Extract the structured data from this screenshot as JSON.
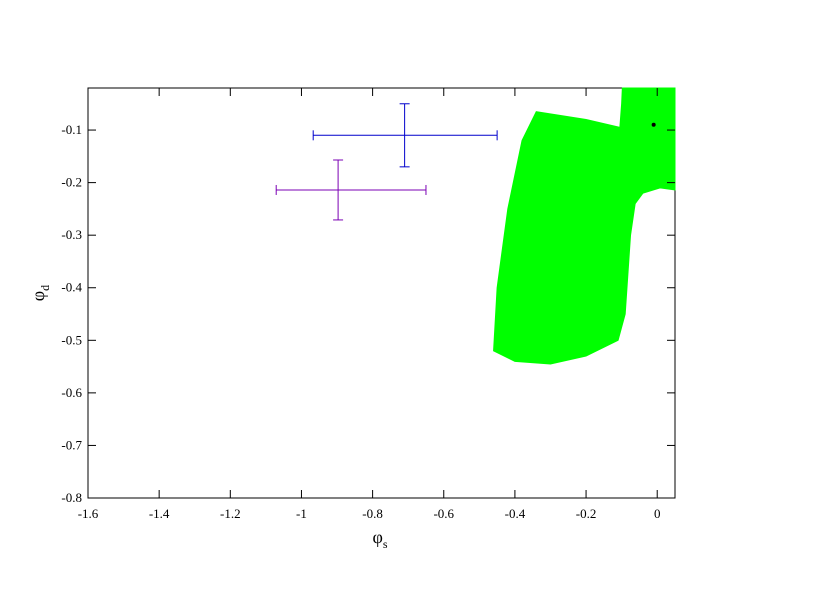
{
  "chart_data": {
    "type": "scatter",
    "xlabel": {
      "text": "φ",
      "sub": "s"
    },
    "ylabel": {
      "text": "φ",
      "sub": "d"
    },
    "xlim": [
      -1.6,
      0.05
    ],
    "ylim": [
      -0.8,
      -0.02
    ],
    "xticks": [
      -1.6,
      -1.4,
      -1.2,
      -1,
      -0.8,
      -0.6,
      -0.4,
      -0.2,
      0
    ],
    "yticks": [
      -0.8,
      -0.7,
      -0.6,
      -0.5,
      -0.4,
      -0.3,
      -0.2,
      -0.1
    ],
    "region": {
      "color": "#00ff00",
      "x": [
        -0.098,
        0.05,
        0.05,
        0.008,
        -0.04,
        -0.062,
        -0.075,
        -0.09,
        -0.11,
        -0.2,
        -0.3,
        -0.4,
        -0.46,
        -0.45,
        -0.42,
        -0.38,
        -0.34,
        -0.2,
        -0.105,
        -0.1
      ],
      "y": [
        -0.02,
        -0.02,
        -0.214,
        -0.21,
        -0.22,
        -0.24,
        -0.3,
        -0.45,
        -0.5,
        -0.53,
        -0.545,
        -0.54,
        -0.52,
        -0.4,
        -0.25,
        -0.12,
        -0.065,
        -0.08,
        -0.095,
        -0.05
      ]
    },
    "series": [
      {
        "color": "#0000cc",
        "x": [
          -0.71
        ],
        "values": [
          -0.11
        ],
        "xerr_minus": [
          0.257
        ],
        "xerr_plus": [
          0.26
        ],
        "yerr": [
          0.06
        ]
      },
      {
        "color": "#7b00b4",
        "x": [
          -0.897
        ],
        "values": [
          -0.214
        ],
        "xerr_minus": [
          0.174
        ],
        "xerr_plus": [
          0.247
        ],
        "yerr": [
          0.057
        ]
      },
      {
        "color": "#000000",
        "x": [
          -0.01
        ],
        "values": [
          -0.09
        ]
      }
    ]
  }
}
